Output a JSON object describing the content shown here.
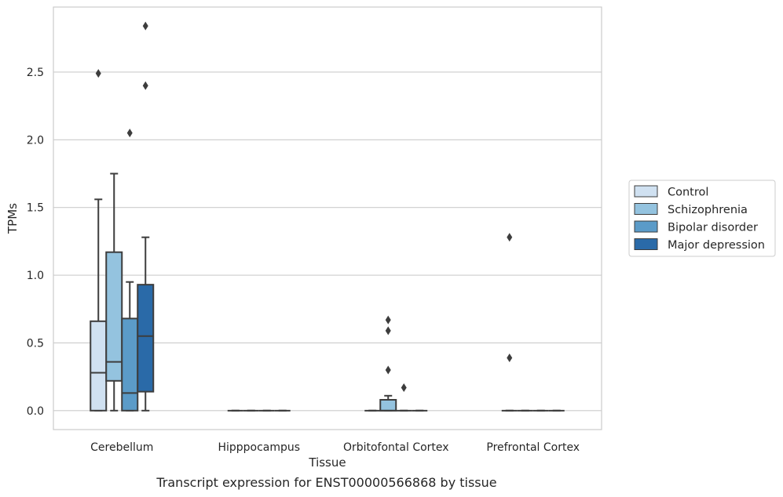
{
  "caption": "Transcript expression for ENST00000566868 by tissue",
  "chart_data": {
    "type": "box",
    "xlabel": "Tissue",
    "ylabel": "TPMs",
    "ylim": [
      -0.14,
      2.98
    ],
    "yticks": [
      0.0,
      0.5,
      1.0,
      1.5,
      2.0,
      2.5
    ],
    "ytick_labels": [
      "0.0",
      "0.5",
      "1.0",
      "1.5",
      "2.0",
      "2.5"
    ],
    "grid": true,
    "legend_position": "right",
    "categories": [
      "Cerebellum",
      "Hipppocampus",
      "Orbitofontal Cortex",
      "Prefrontal Cortex"
    ],
    "series": [
      {
        "name": "Control",
        "color": "#d0e1f1",
        "boxes": [
          {
            "min": 0.0,
            "q1": 0.0,
            "median": 0.28,
            "q3": 0.66,
            "max": 1.56,
            "outliers": [
              2.49
            ]
          },
          {
            "min": 0.0,
            "q1": 0.0,
            "median": 0.0,
            "q3": 0.0,
            "max": 0.0,
            "outliers": []
          },
          {
            "min": 0.0,
            "q1": 0.0,
            "median": 0.0,
            "q3": 0.0,
            "max": 0.0,
            "outliers": []
          },
          {
            "min": 0.0,
            "q1": 0.0,
            "median": 0.0,
            "q3": 0.0,
            "max": 0.0,
            "outliers": [
              1.28,
              0.39
            ]
          }
        ]
      },
      {
        "name": "Schizophrenia",
        "color": "#94c3df",
        "boxes": [
          {
            "min": 0.0,
            "q1": 0.22,
            "median": 0.36,
            "q3": 1.17,
            "max": 1.75,
            "outliers": []
          },
          {
            "min": 0.0,
            "q1": 0.0,
            "median": 0.0,
            "q3": 0.0,
            "max": 0.0,
            "outliers": []
          },
          {
            "min": 0.0,
            "q1": 0.0,
            "median": 0.0,
            "q3": 0.08,
            "max": 0.11,
            "outliers": [
              0.67,
              0.59,
              0.3
            ]
          },
          {
            "min": 0.0,
            "q1": 0.0,
            "median": 0.0,
            "q3": 0.0,
            "max": 0.0,
            "outliers": []
          }
        ]
      },
      {
        "name": "Bipolar disorder",
        "color": "#5b9bc8",
        "boxes": [
          {
            "min": 0.0,
            "q1": 0.0,
            "median": 0.13,
            "q3": 0.68,
            "max": 0.95,
            "outliers": [
              2.05
            ]
          },
          {
            "min": 0.0,
            "q1": 0.0,
            "median": 0.0,
            "q3": 0.0,
            "max": 0.0,
            "outliers": []
          },
          {
            "min": 0.0,
            "q1": 0.0,
            "median": 0.0,
            "q3": 0.0,
            "max": 0.0,
            "outliers": [
              0.17
            ]
          },
          {
            "min": 0.0,
            "q1": 0.0,
            "median": 0.0,
            "q3": 0.0,
            "max": 0.0,
            "outliers": []
          }
        ]
      },
      {
        "name": "Major depression",
        "color": "#2a6aa8",
        "boxes": [
          {
            "min": 0.0,
            "q1": 0.14,
            "median": 0.55,
            "q3": 0.93,
            "max": 1.28,
            "outliers": [
              2.84,
              2.4
            ]
          },
          {
            "min": 0.0,
            "q1": 0.0,
            "median": 0.0,
            "q3": 0.0,
            "max": 0.0,
            "outliers": []
          },
          {
            "min": 0.0,
            "q1": 0.0,
            "median": 0.0,
            "q3": 0.0,
            "max": 0.0,
            "outliers": []
          },
          {
            "min": 0.0,
            "q1": 0.0,
            "median": 0.0,
            "q3": 0.0,
            "max": 0.0,
            "outliers": []
          }
        ]
      }
    ]
  }
}
